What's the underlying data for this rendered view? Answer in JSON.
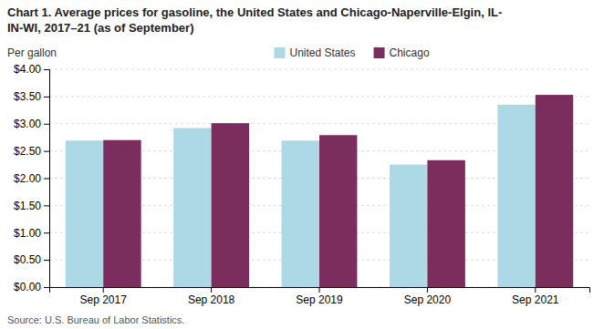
{
  "chart_data": {
    "type": "bar",
    "title": [
      "Chart 1. Average prices for gasoline, the United States and Chicago-Naperville-Elgin, IL-",
      "IN-WI, 2017–21 (as of September)"
    ],
    "ylabel": "Per gallon",
    "source": "Source: U.S. Bureau of Labor Statistics.",
    "categories": [
      "Sep 2017",
      "Sep 2018",
      "Sep 2019",
      "Sep 2020",
      "Sep 2021"
    ],
    "series": [
      {
        "name": "United States",
        "color": "#add8e6",
        "values": [
          2.69,
          2.92,
          2.69,
          2.25,
          3.35
        ]
      },
      {
        "name": "Chicago",
        "color": "#7b2d5e",
        "values": [
          2.7,
          3.01,
          2.79,
          2.33,
          3.53
        ]
      }
    ],
    "ylim": [
      0,
      4.0
    ],
    "yticks": [
      {
        "value": 0.0,
        "label": "$0.00"
      },
      {
        "value": 0.5,
        "label": "$0.50"
      },
      {
        "value": 1.0,
        "label": "$1.00"
      },
      {
        "value": 1.5,
        "label": "$1.50"
      },
      {
        "value": 2.0,
        "label": "$2.00"
      },
      {
        "value": 2.5,
        "label": "$2.50"
      },
      {
        "value": 3.0,
        "label": "$3.00"
      },
      {
        "value": 3.5,
        "label": "$3.50"
      },
      {
        "value": 4.0,
        "label": "$4.00"
      }
    ],
    "grid": true,
    "legend": "top"
  }
}
